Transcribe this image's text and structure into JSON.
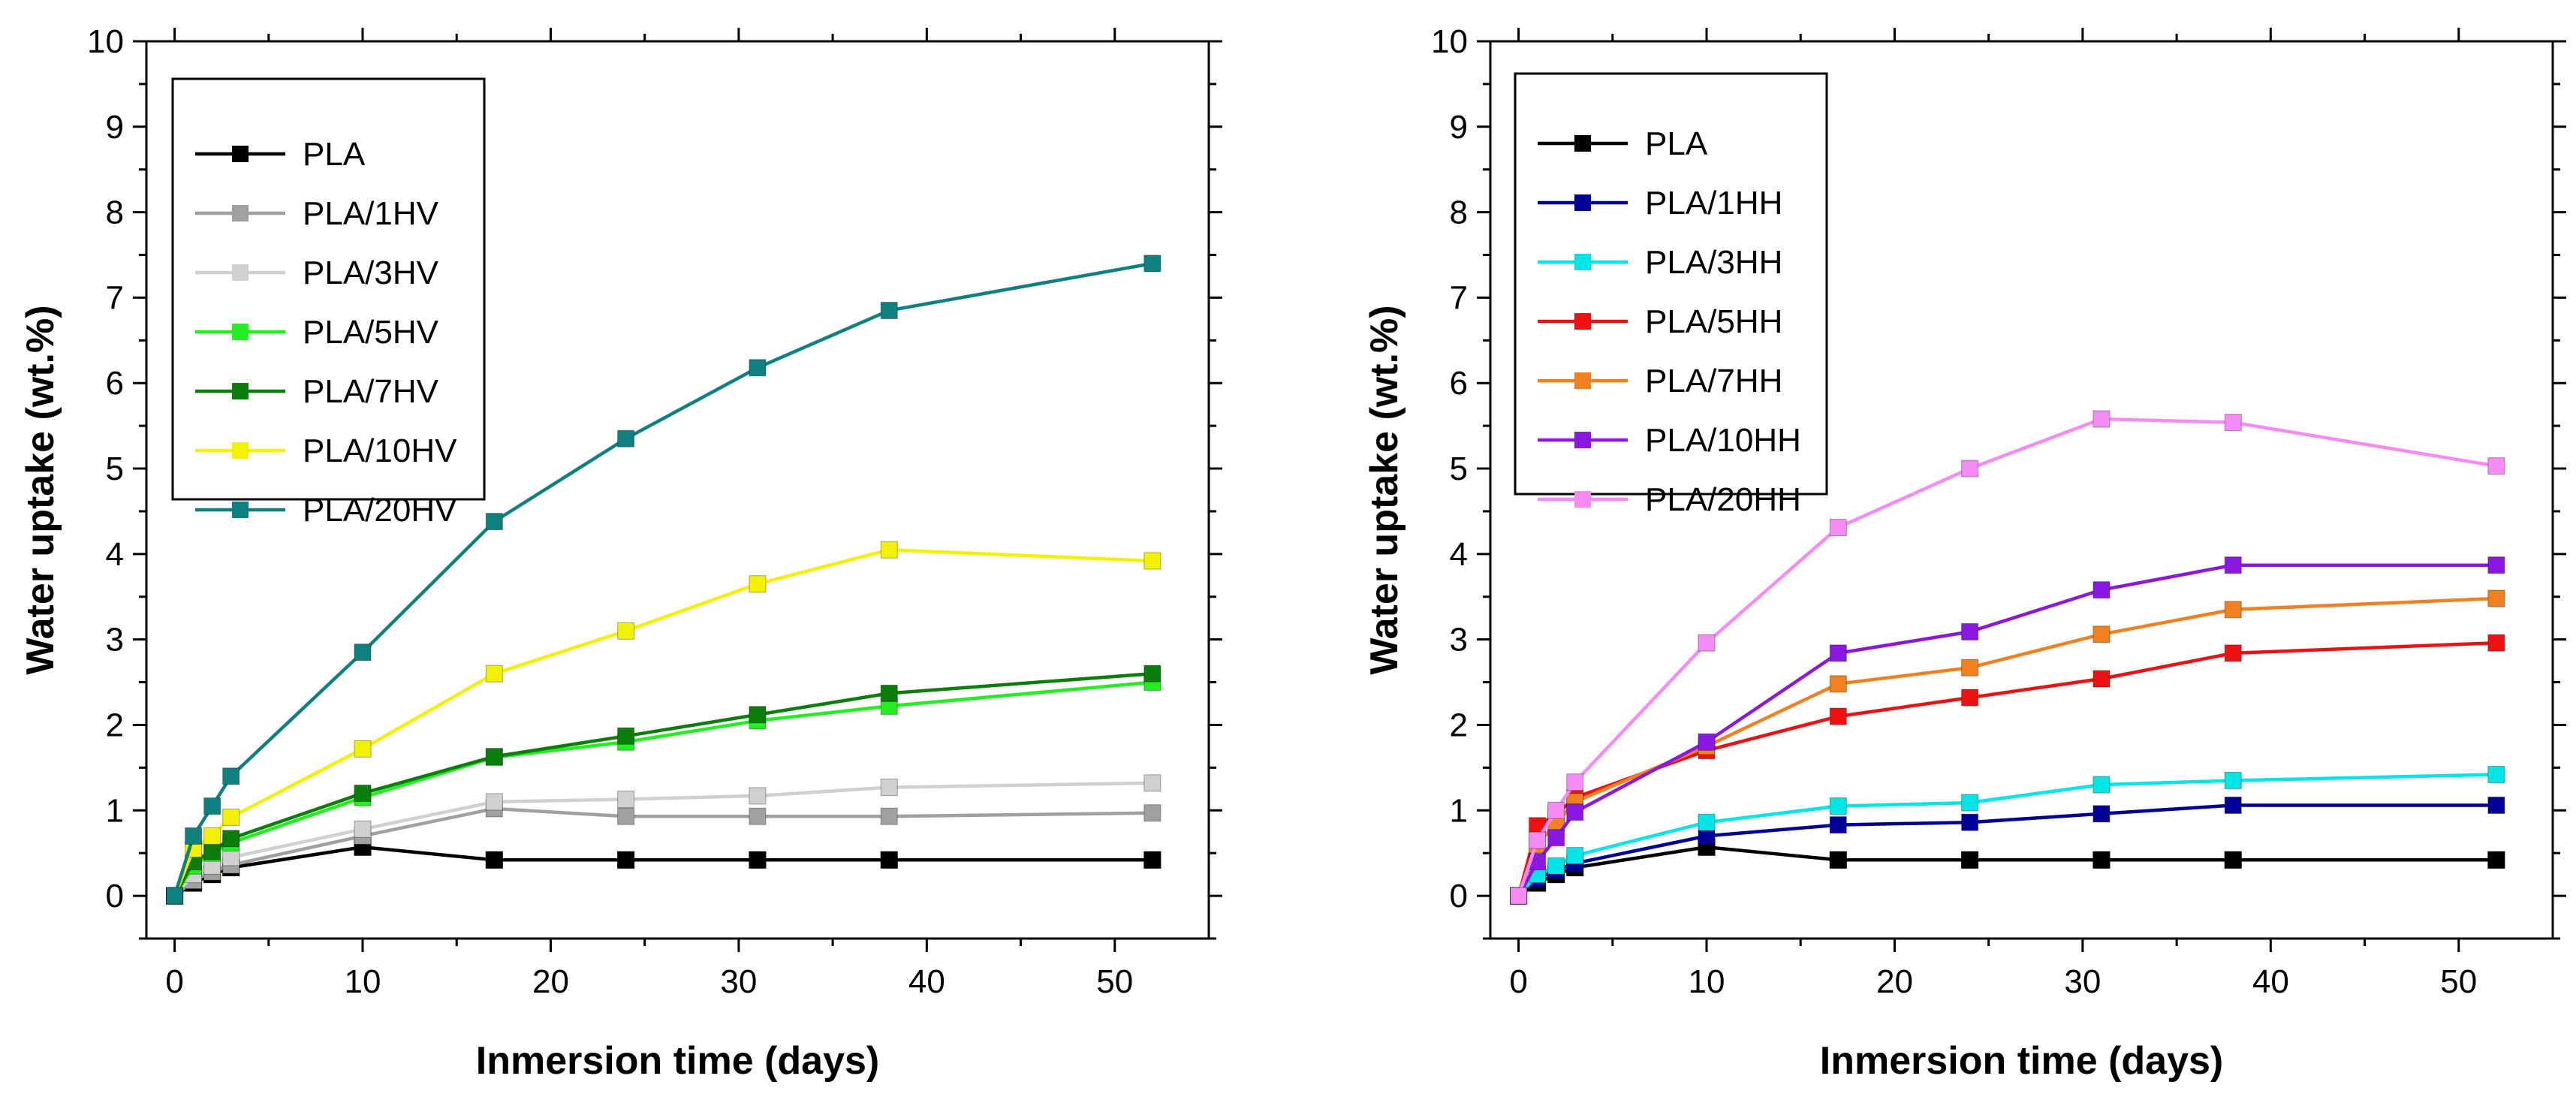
{
  "chart_data": [
    {
      "type": "line",
      "title": "",
      "xlabel": "Inmersion time (days)",
      "ylabel": "Water uptake (wt.%)",
      "xlim": [
        -1.5,
        55
      ],
      "ylim": [
        -0.5,
        10
      ],
      "xticks": [
        0,
        10,
        20,
        30,
        40,
        50
      ],
      "yticks": [
        0,
        1,
        2,
        3,
        4,
        5,
        6,
        7,
        8,
        9,
        10
      ],
      "x": [
        0,
        1,
        2,
        3,
        10,
        17,
        24,
        31,
        38,
        52
      ],
      "legend": "top-left",
      "series": [
        {
          "name": "PLA",
          "color": "#000000",
          "values": [
            0,
            0.15,
            0.25,
            0.33,
            0.57,
            0.42,
            0.42,
            0.42,
            0.42,
            0.42
          ]
        },
        {
          "name": "PLA/1HV",
          "color": "#a0a0a0",
          "values": [
            0,
            0.18,
            0.28,
            0.36,
            0.7,
            1.02,
            0.93,
            0.93,
            0.93,
            0.97
          ]
        },
        {
          "name": "PLA/3HV",
          "color": "#d0d0d0",
          "values": [
            0,
            0.25,
            0.35,
            0.45,
            0.78,
            1.1,
            1.13,
            1.17,
            1.27,
            1.32
          ]
        },
        {
          "name": "PLA/5HV",
          "color": "#22ee22",
          "values": [
            0,
            0.35,
            0.5,
            0.62,
            1.15,
            1.62,
            1.8,
            2.05,
            2.22,
            2.5
          ]
        },
        {
          "name": "PLA/7HV",
          "color": "#0b7d0b",
          "values": [
            0,
            0.4,
            0.52,
            0.67,
            1.2,
            1.63,
            1.87,
            2.12,
            2.37,
            2.6
          ]
        },
        {
          "name": "PLA/10HV",
          "color": "#f2f200",
          "values": [
            0,
            0.55,
            0.7,
            0.92,
            1.72,
            2.6,
            3.1,
            3.65,
            4.05,
            3.92
          ]
        },
        {
          "name": "PLA/20HV",
          "color": "#0f8080",
          "values": [
            0,
            0.7,
            1.05,
            1.4,
            2.85,
            4.38,
            5.35,
            6.18,
            6.85,
            7.4
          ]
        }
      ]
    },
    {
      "type": "line",
      "title": "",
      "xlabel": "Inmersion time (days)",
      "ylabel": "Water uptake (wt.%)",
      "xlim": [
        -1.5,
        55
      ],
      "ylim": [
        -0.5,
        10
      ],
      "xticks": [
        0,
        10,
        20,
        30,
        40,
        50
      ],
      "yticks": [
        0,
        1,
        2,
        3,
        4,
        5,
        6,
        7,
        8,
        9,
        10
      ],
      "x": [
        0,
        1,
        2,
        3,
        10,
        17,
        24,
        31,
        38,
        52
      ],
      "legend": "top-left",
      "series": [
        {
          "name": "PLA",
          "color": "#000000",
          "values": [
            0,
            0.15,
            0.25,
            0.33,
            0.57,
            0.42,
            0.42,
            0.42,
            0.42,
            0.42
          ]
        },
        {
          "name": "PLA/1HH",
          "color": "#000099",
          "values": [
            0,
            0.2,
            0.3,
            0.38,
            0.7,
            0.83,
            0.86,
            0.96,
            1.06,
            1.06
          ]
        },
        {
          "name": "PLA/3HH",
          "color": "#00e5e5",
          "values": [
            0,
            0.25,
            0.35,
            0.47,
            0.86,
            1.05,
            1.09,
            1.3,
            1.35,
            1.42
          ]
        },
        {
          "name": "PLA/5HH",
          "color": "#ee1111",
          "values": [
            0,
            0.82,
            0.95,
            1.15,
            1.7,
            2.1,
            2.32,
            2.54,
            2.84,
            2.96
          ]
        },
        {
          "name": "PLA/7HH",
          "color": "#f08020",
          "values": [
            0,
            0.6,
            0.85,
            1.1,
            1.75,
            2.48,
            2.67,
            3.06,
            3.35,
            3.48
          ]
        },
        {
          "name": "PLA/10HH",
          "color": "#8a18e0",
          "values": [
            0,
            0.4,
            0.68,
            0.98,
            1.8,
            2.84,
            3.09,
            3.58,
            3.87,
            3.87
          ]
        },
        {
          "name": "PLA/20HH",
          "color": "#f58cf5",
          "values": [
            0,
            0.65,
            1.0,
            1.33,
            2.96,
            4.31,
            5.0,
            5.58,
            5.54,
            5.03
          ]
        }
      ]
    }
  ]
}
